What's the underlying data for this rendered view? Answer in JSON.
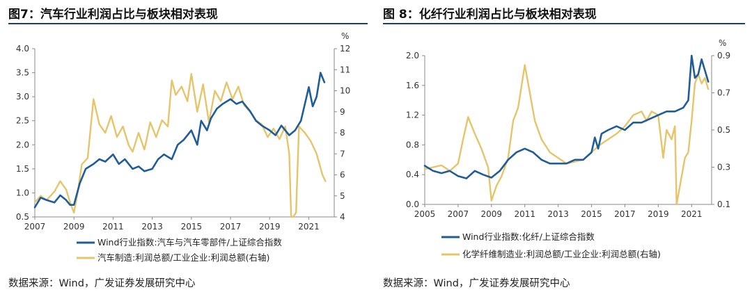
{
  "colors": {
    "blue": "#1f5c99",
    "gold": "#e6c46a",
    "rule": "#1c3f73"
  },
  "panels": [
    {
      "title": "图7：汽车行业利润占比与板块相对表现",
      "source": "数据来源：Wind，广发证券发展研究中心"
    },
    {
      "title": "图 8：化纤行业利润占比与板块相对表现",
      "source": "数据来源：Wind，广发证券发展研究中心"
    }
  ],
  "chart_data": [
    {
      "type": "line",
      "title": "图7：汽车行业利润占比与板块相对表现",
      "ylim": [
        0.5,
        4.0
      ],
      "yticks": [
        "0.5",
        "1.0",
        "1.5",
        "2.0",
        "2.5",
        "3.0",
        "3.5",
        "4.0"
      ],
      "y2lim": [
        4,
        12
      ],
      "y2ticks": [
        "4",
        "5",
        "6",
        "7",
        "8",
        "9",
        "10",
        "11",
        "12"
      ],
      "y2unit": "%",
      "xlim": [
        2007,
        2022.3
      ],
      "xticks": [
        "2007",
        "2009",
        "2011",
        "2013",
        "2015",
        "2017",
        "2019",
        "2021"
      ],
      "grid": false,
      "legend_position": "bottom",
      "series": [
        {
          "name": "Wind行业指数:汽车与汽车零部件/上证综合指数",
          "axis": "left",
          "color": "#1f5c99",
          "x": [
            2007.0,
            2007.3,
            2007.6,
            2008.0,
            2008.3,
            2008.6,
            2008.8,
            2009.0,
            2009.3,
            2009.6,
            2010.0,
            2010.3,
            2010.6,
            2011.0,
            2011.3,
            2011.6,
            2012.0,
            2012.3,
            2012.6,
            2013.0,
            2013.3,
            2013.6,
            2014.0,
            2014.3,
            2014.6,
            2015.0,
            2015.3,
            2015.5,
            2015.8,
            2016.0,
            2016.3,
            2016.6,
            2017.0,
            2017.3,
            2017.6,
            2018.0,
            2018.3,
            2018.6,
            2019.0,
            2019.3,
            2019.6,
            2020.0,
            2020.3,
            2020.6,
            2021.0,
            2021.2,
            2021.4,
            2021.6,
            2021.8
          ],
          "y": [
            0.7,
            0.9,
            0.85,
            0.8,
            0.95,
            0.85,
            0.75,
            0.75,
            1.2,
            1.5,
            1.6,
            1.7,
            1.65,
            1.8,
            1.6,
            1.7,
            1.5,
            1.55,
            1.45,
            1.5,
            1.7,
            1.8,
            1.7,
            2.0,
            2.1,
            2.3,
            2.0,
            2.5,
            2.3,
            2.55,
            2.75,
            2.85,
            2.95,
            2.85,
            2.9,
            2.7,
            2.5,
            2.4,
            2.3,
            2.2,
            2.4,
            2.2,
            2.3,
            2.5,
            3.2,
            2.8,
            3.0,
            3.5,
            3.3
          ]
        },
        {
          "name": "汽车制造:利润总额/工业企业:利润总额(右轴)",
          "axis": "right",
          "color": "#e6c46a",
          "x": [
            2007.0,
            2007.3,
            2007.6,
            2008.0,
            2008.3,
            2008.6,
            2008.8,
            2009.0,
            2009.2,
            2009.4,
            2009.7,
            2010.0,
            2010.3,
            2010.6,
            2010.9,
            2011.2,
            2011.5,
            2011.8,
            2012.0,
            2012.3,
            2012.6,
            2012.9,
            2013.2,
            2013.5,
            2013.8,
            2014.0,
            2014.2,
            2014.5,
            2014.8,
            2015.0,
            2015.3,
            2015.6,
            2015.9,
            2016.2,
            2016.5,
            2016.8,
            2017.1,
            2017.4,
            2017.7,
            2018.0,
            2018.3,
            2018.6,
            2018.9,
            2019.2,
            2019.5,
            2019.8,
            2020.0,
            2020.1,
            2020.2,
            2020.35,
            2020.5,
            2020.8,
            2021.1,
            2021.4,
            2021.7,
            2021.85
          ],
          "y": [
            4.7,
            5.0,
            4.8,
            5.2,
            5.7,
            5.3,
            4.7,
            4.2,
            5.2,
            6.5,
            6.8,
            9.6,
            8.4,
            8.0,
            8.8,
            7.8,
            8.3,
            7.4,
            7.1,
            8.0,
            7.2,
            8.5,
            7.8,
            8.6,
            8.3,
            10.5,
            9.8,
            10.2,
            9.5,
            10.8,
            9.0,
            10.3,
            8.5,
            10.0,
            9.5,
            10.4,
            9.6,
            10.2,
            9.3,
            9.0,
            8.6,
            8.4,
            7.8,
            8.2,
            7.7,
            8.3,
            7.0,
            4.0,
            4.0,
            4.2,
            8.3,
            8.0,
            7.6,
            7.0,
            6.0,
            5.7
          ]
        }
      ]
    },
    {
      "type": "line",
      "title": "图 8：化纤行业利润占比与板块相对表现",
      "ylim": [
        0.0,
        2.0
      ],
      "yticks": [
        "0.0",
        "0.4",
        "0.8",
        "1.2",
        "1.6",
        "2.0"
      ],
      "y2lim": [
        0.1,
        0.9
      ],
      "y2ticks": [
        "0.1",
        "0.3",
        "0.5",
        "0.7",
        "0.9"
      ],
      "y2unit": "%",
      "xlim": [
        2005,
        2022.2
      ],
      "xticks": [
        "2005",
        "2007",
        "2009",
        "2011",
        "2013",
        "2015",
        "2017",
        "2019",
        "2021"
      ],
      "grid": false,
      "legend_position": "bottom",
      "series": [
        {
          "name": "Wind行业指数:化纤/上证综合指数",
          "axis": "left",
          "color": "#1f5c99",
          "x": [
            2005.0,
            2005.5,
            2006.0,
            2006.5,
            2007.0,
            2007.5,
            2008.0,
            2008.5,
            2009.0,
            2009.5,
            2010.0,
            2010.5,
            2011.0,
            2011.5,
            2012.0,
            2012.5,
            2013.0,
            2013.5,
            2014.0,
            2014.5,
            2015.0,
            2015.2,
            2015.4,
            2015.6,
            2016.0,
            2016.5,
            2017.0,
            2017.5,
            2018.0,
            2018.5,
            2019.0,
            2019.5,
            2020.0,
            2020.5,
            2020.8,
            2021.0,
            2021.2,
            2021.4,
            2021.6,
            2021.8,
            2022.0
          ],
          "y": [
            0.52,
            0.45,
            0.42,
            0.45,
            0.38,
            0.35,
            0.45,
            0.4,
            0.36,
            0.45,
            0.6,
            0.7,
            0.75,
            0.7,
            0.6,
            0.55,
            0.55,
            0.55,
            0.6,
            0.6,
            0.7,
            0.9,
            0.75,
            0.95,
            1.0,
            1.05,
            1.0,
            1.1,
            1.1,
            1.15,
            1.2,
            1.25,
            1.25,
            1.3,
            1.4,
            2.0,
            1.7,
            1.75,
            1.95,
            1.8,
            1.65
          ]
        },
        {
          "name": "化学纤维制造业:利润总额/工业企业:利润总额(右轴)",
          "axis": "right",
          "color": "#e6c46a",
          "x": [
            2005.0,
            2005.5,
            2006.0,
            2006.5,
            2007.0,
            2007.3,
            2007.6,
            2008.0,
            2008.4,
            2008.8,
            2009.0,
            2009.3,
            2009.6,
            2010.0,
            2010.3,
            2010.6,
            2011.0,
            2011.3,
            2011.6,
            2012.0,
            2012.5,
            2013.0,
            2013.5,
            2014.0,
            2014.5,
            2015.0,
            2015.5,
            2016.0,
            2016.5,
            2017.0,
            2017.5,
            2018.0,
            2018.3,
            2018.6,
            2019.0,
            2019.3,
            2019.5,
            2019.8,
            2020.0,
            2020.1,
            2020.3,
            2020.6,
            2020.8,
            2021.0,
            2021.2,
            2021.4,
            2021.6,
            2021.8,
            2022.0
          ],
          "y": [
            0.29,
            0.3,
            0.31,
            0.28,
            0.32,
            0.45,
            0.57,
            0.48,
            0.4,
            0.3,
            0.12,
            0.2,
            0.25,
            0.35,
            0.55,
            0.62,
            0.85,
            0.7,
            0.55,
            0.45,
            0.38,
            0.35,
            0.32,
            0.33,
            0.34,
            0.38,
            0.42,
            0.45,
            0.48,
            0.52,
            0.58,
            0.6,
            0.55,
            0.6,
            0.58,
            0.35,
            0.5,
            0.45,
            0.52,
            0.1,
            0.2,
            0.35,
            0.38,
            0.55,
            0.75,
            0.8,
            0.75,
            0.78,
            0.72
          ]
        }
      ]
    }
  ]
}
